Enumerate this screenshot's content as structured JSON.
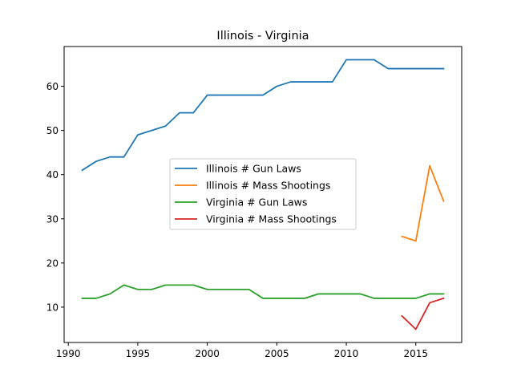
{
  "chart_data": {
    "type": "line",
    "title": "Illinois - Virginia",
    "xlabel": "",
    "ylabel": "",
    "xlim": [
      1989.7,
      2018.3
    ],
    "ylim": [
      2.0,
      69.0
    ],
    "xticks": [
      1990,
      1995,
      2000,
      2005,
      2010,
      2015
    ],
    "yticks": [
      10,
      20,
      30,
      40,
      50,
      60
    ],
    "grid": false,
    "legend_position": "center",
    "series": [
      {
        "name": "Illinois # Gun Laws",
        "color": "#1f77b4",
        "x": [
          1991,
          1992,
          1993,
          1994,
          1995,
          1996,
          1997,
          1998,
          1999,
          2000,
          2001,
          2002,
          2003,
          2004,
          2005,
          2006,
          2007,
          2008,
          2009,
          2010,
          2011,
          2012,
          2013,
          2014,
          2015,
          2016,
          2017
        ],
        "values": [
          41,
          43,
          44,
          44,
          49,
          50,
          51,
          54,
          54,
          58,
          58,
          58,
          58,
          58,
          60,
          61,
          61,
          61,
          61,
          66,
          66,
          66,
          64,
          64,
          64,
          64,
          64
        ]
      },
      {
        "name": "Illinois # Mass Shootings",
        "color": "#ff7f0e",
        "x": [
          2014,
          2015,
          2016,
          2017
        ],
        "values": [
          26,
          25,
          42,
          34
        ]
      },
      {
        "name": "Virginia # Gun Laws",
        "color": "#2ca02c",
        "x": [
          1991,
          1992,
          1993,
          1994,
          1995,
          1996,
          1997,
          1998,
          1999,
          2000,
          2001,
          2002,
          2003,
          2004,
          2005,
          2006,
          2007,
          2008,
          2009,
          2010,
          2011,
          2012,
          2013,
          2014,
          2015,
          2016,
          2017
        ],
        "values": [
          12,
          12,
          13,
          15,
          14,
          14,
          15,
          15,
          15,
          14,
          14,
          14,
          14,
          12,
          12,
          12,
          12,
          13,
          13,
          13,
          13,
          12,
          12,
          12,
          12,
          13,
          13
        ]
      },
      {
        "name": "Virginia # Mass Shootings",
        "color": "#d62728",
        "x": [
          2014,
          2015,
          2016,
          2017
        ],
        "values": [
          8,
          5,
          11,
          12
        ]
      }
    ]
  }
}
